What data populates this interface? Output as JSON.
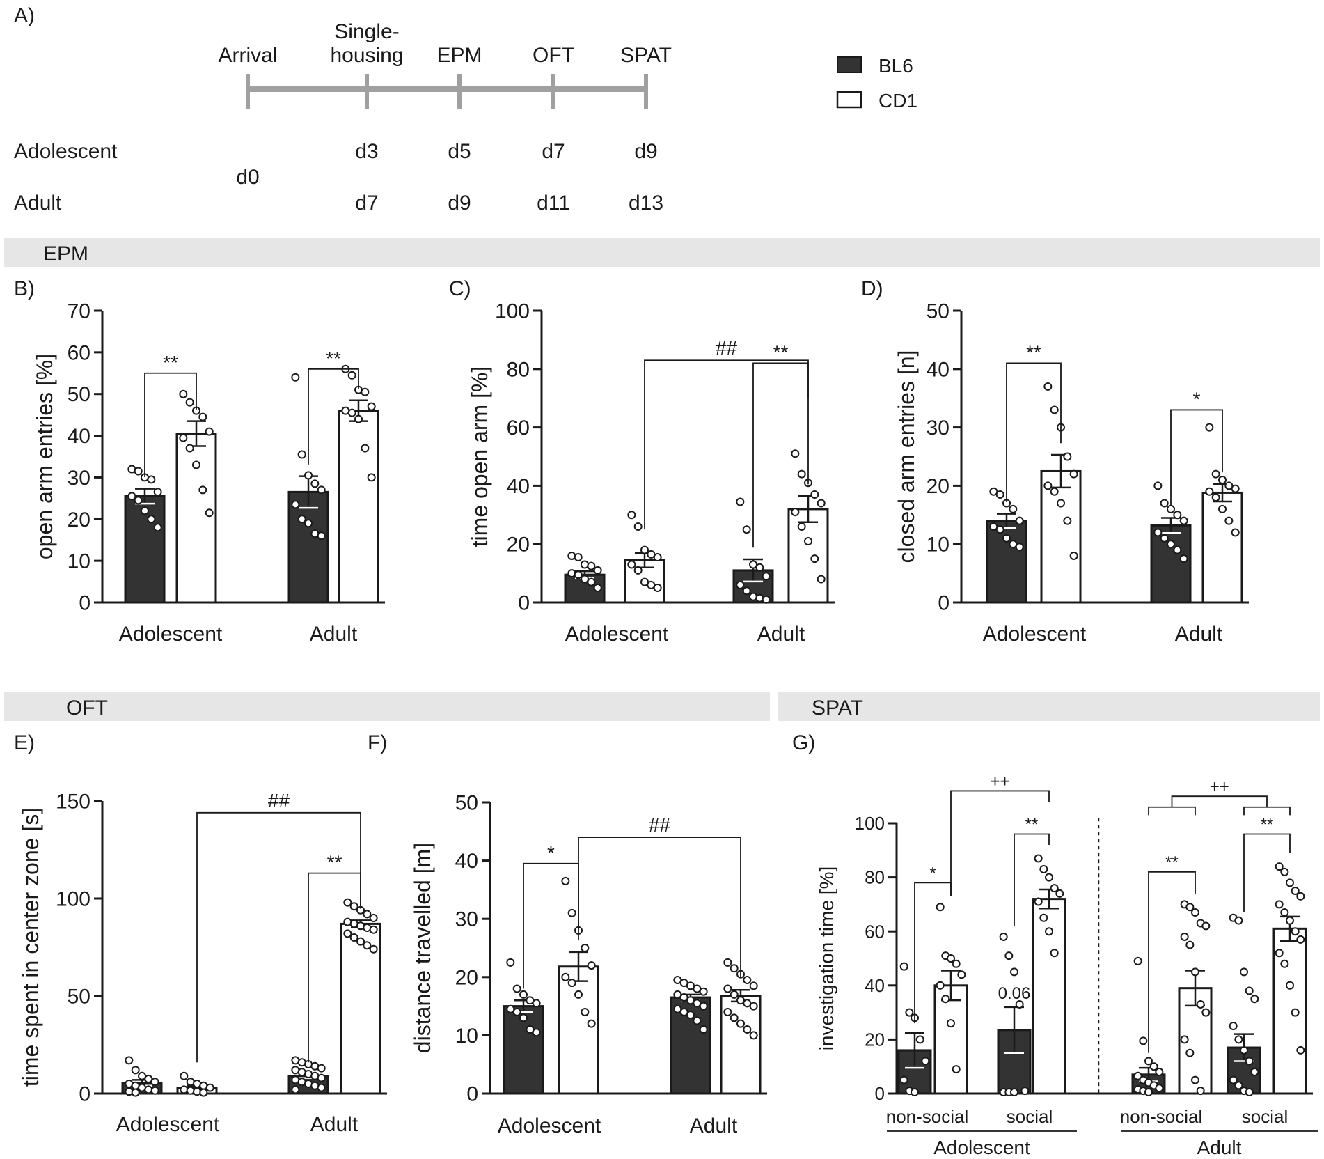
{
  "colors": {
    "bl6": "#333333",
    "cd1": "#ffffff",
    "axis": "#1a1a1a",
    "timeline": "#a0a0a0",
    "section_band": "#e6e6e6"
  },
  "legend": {
    "bl6": "BL6",
    "cd1": "CD1"
  },
  "panel_labels": {
    "a": "A)",
    "b": "B)",
    "c": "C)",
    "d": "D)",
    "e": "E)",
    "f": "F)",
    "g": "G)"
  },
  "sections": {
    "epm": "EPM",
    "oft": "OFT",
    "spat": "SPAT"
  },
  "timeline": {
    "events": [
      {
        "label": [
          "Arrival"
        ]
      },
      {
        "label": [
          "Single-",
          "housing"
        ]
      },
      {
        "label": [
          "EPM"
        ]
      },
      {
        "label": [
          "OFT"
        ]
      },
      {
        "label": [
          "SPAT"
        ]
      }
    ],
    "rows": [
      {
        "name": "Adolescent",
        "days": [
          "",
          "d3",
          "d5",
          "d7",
          "d9"
        ]
      },
      {
        "name": "Adult",
        "days": [
          "",
          "d7",
          "d9",
          "d11",
          "d13"
        ]
      }
    ],
    "shared_day": "d0"
  },
  "chart_data": [
    {
      "id": "B",
      "type": "bar",
      "ylabel": "open arm entries [%]",
      "ylim": [
        0,
        70
      ],
      "yticks": [
        0,
        10,
        20,
        30,
        40,
        50,
        60,
        70
      ],
      "categories": [
        "Adolescent",
        "Adult"
      ],
      "series": [
        {
          "name": "BL6",
          "values": [
            25.5,
            26.5
          ],
          "sem": [
            1.8,
            3.8
          ]
        },
        {
          "name": "CD1",
          "values": [
            40.5,
            46
          ],
          "sem": [
            3,
            2.5
          ]
        }
      ],
      "points": [
        [
          [
            32,
            31.5,
            30,
            29.5,
            26.5,
            25.5,
            24.5,
            22,
            20,
            18
          ],
          [
            50,
            48,
            46,
            44.5,
            41,
            39.5,
            37,
            33,
            27,
            21.5
          ]
        ],
        [
          [
            54,
            35.5,
            30.5,
            28.5,
            27,
            23.5,
            20,
            19,
            16.5,
            16
          ],
          [
            56,
            54.5,
            51,
            50.5,
            47,
            46,
            45.5,
            44,
            37,
            30
          ]
        ]
      ],
      "annotations": [
        {
          "text": "**",
          "between": "Adolescent BL6 vs CD1"
        },
        {
          "text": "**",
          "between": "Adult BL6 vs CD1"
        }
      ]
    },
    {
      "id": "C",
      "type": "bar",
      "ylabel": "time open arm [%]",
      "ylim": [
        0,
        100
      ],
      "yticks": [
        0,
        20,
        40,
        60,
        80,
        100
      ],
      "categories": [
        "Adolescent",
        "Adult"
      ],
      "series": [
        {
          "name": "BL6",
          "values": [
            9.5,
            11
          ],
          "sem": [
            1.2,
            3.8
          ]
        },
        {
          "name": "CD1",
          "values": [
            14.5,
            32
          ],
          "sem": [
            2.5,
            4.5
          ]
        }
      ],
      "points": [
        [
          [
            16,
            15.5,
            13,
            12.5,
            11,
            10,
            9.5,
            8,
            7,
            5
          ],
          [
            30,
            26,
            18,
            16.5,
            15.5,
            13,
            11,
            7,
            6,
            5
          ]
        ],
        [
          [
            34.5,
            25,
            13,
            12,
            9,
            6,
            4,
            2,
            1.5,
            1
          ],
          [
            51,
            44,
            41,
            37,
            34,
            31,
            26,
            21,
            15,
            8
          ]
        ]
      ],
      "annotations": [
        {
          "text": "**",
          "between": "Adult BL6 vs CD1"
        },
        {
          "text": "##",
          "between": "Adolescent CD1 vs Adult CD1"
        }
      ]
    },
    {
      "id": "D",
      "type": "bar",
      "ylabel": "closed arm entries [n]",
      "ylim": [
        0,
        50
      ],
      "yticks": [
        0,
        10,
        20,
        30,
        40,
        50
      ],
      "categories": [
        "Adolescent",
        "Adult"
      ],
      "series": [
        {
          "name": "BL6",
          "values": [
            14,
            13.2
          ],
          "sem": [
            1.2,
            1.3
          ]
        },
        {
          "name": "CD1",
          "values": [
            22.5,
            18.8
          ],
          "sem": [
            2.8,
            1.5
          ]
        }
      ],
      "points": [
        [
          [
            19,
            18.5,
            17,
            16,
            14,
            13,
            12.5,
            11,
            10,
            9.5
          ],
          [
            37,
            33,
            30,
            25,
            22,
            20,
            19,
            17,
            14,
            8
          ]
        ],
        [
          [
            20,
            17,
            16,
            15,
            14,
            12,
            11,
            10,
            9,
            7.5
          ],
          [
            30,
            22,
            21,
            20,
            19.5,
            19,
            18,
            16,
            14,
            12
          ]
        ]
      ],
      "annotations": [
        {
          "text": "**",
          "between": "Adolescent BL6 vs CD1"
        },
        {
          "text": "*",
          "between": "Adult BL6 vs CD1"
        }
      ]
    },
    {
      "id": "E",
      "type": "bar",
      "ylabel": "time spent in center zone [s]",
      "ylim": [
        0,
        150
      ],
      "yticks": [
        0,
        50,
        100,
        150
      ],
      "categories": [
        "Adolescent",
        "Adult"
      ],
      "series": [
        {
          "name": "BL6",
          "values": [
            5.5,
            9
          ],
          "sem": [
            1.5,
            1
          ]
        },
        {
          "name": "CD1",
          "values": [
            3,
            87
          ],
          "sem": [
            1,
            1.8
          ]
        }
      ],
      "points": [
        [
          [
            17,
            12,
            9,
            7.5,
            6,
            5,
            4,
            3,
            2,
            1.5,
            1,
            0.5
          ],
          [
            9,
            6,
            5,
            4,
            3,
            2,
            1.5,
            1,
            0.5
          ]
        ],
        [
          [
            17,
            16,
            15,
            14,
            13,
            12,
            11,
            10,
            9,
            8,
            7,
            6,
            5,
            4,
            3,
            2
          ],
          [
            98,
            96,
            94,
            92,
            90,
            88,
            87,
            86,
            85,
            84,
            82,
            80,
            78,
            76,
            74
          ]
        ]
      ],
      "annotations": [
        {
          "text": "**",
          "between": "Adult BL6 vs CD1"
        },
        {
          "text": "##",
          "between": "Adolescent CD1 vs Adult CD1"
        }
      ]
    },
    {
      "id": "F",
      "type": "bar",
      "ylabel": "distance travelled [m]",
      "ylim": [
        0,
        50
      ],
      "yticks": [
        0,
        10,
        20,
        30,
        40,
        50
      ],
      "categories": [
        "Adolescent",
        "Adult"
      ],
      "series": [
        {
          "name": "BL6",
          "values": [
            15,
            16.5
          ],
          "sem": [
            1,
            0.5
          ]
        },
        {
          "name": "CD1",
          "values": [
            21.8,
            16.8
          ],
          "sem": [
            2.5,
            1
          ]
        }
      ],
      "points": [
        [
          [
            22.5,
            18,
            17,
            16,
            15.5,
            14.5,
            14,
            13,
            11,
            10.5
          ],
          [
            36.5,
            31,
            28,
            25,
            22,
            20,
            19,
            17,
            14,
            12
          ]
        ],
        [
          [
            19.5,
            19,
            18.5,
            18,
            17.5,
            17,
            16.5,
            16,
            15.5,
            15,
            14.5,
            14,
            13.5,
            12.5,
            11
          ],
          [
            22.5,
            21.5,
            20.5,
            19.5,
            18.5,
            18,
            17,
            16,
            15.5,
            15,
            14,
            13,
            12,
            11,
            10
          ]
        ]
      ],
      "annotations": [
        {
          "text": "*",
          "between": "Adolescent BL6 vs CD1"
        },
        {
          "text": "##",
          "between": "Adolescent CD1 vs Adult CD1"
        }
      ]
    },
    {
      "id": "G",
      "type": "bar",
      "ylabel": "investigation time [%]",
      "ylim": [
        0,
        100
      ],
      "yticks": [
        0,
        20,
        40,
        60,
        80,
        100
      ],
      "categories": [
        "non-social",
        "social",
        "non-social",
        "social"
      ],
      "groups": [
        "Adolescent",
        "Adult"
      ],
      "series": [
        {
          "name": "BL6",
          "values": [
            16,
            23.5,
            7,
            17
          ],
          "sem": [
            6.5,
            8.5,
            2.5,
            5
          ]
        },
        {
          "name": "CD1",
          "values": [
            40,
            72,
            39,
            61
          ],
          "sem": [
            5.5,
            3.5,
            6.5,
            4.5
          ]
        }
      ],
      "points": [
        [
          [
            47,
            30,
            28,
            20,
            12,
            5,
            1,
            0.5
          ],
          [
            69,
            51,
            50,
            48,
            44,
            40,
            35,
            26,
            9
          ]
        ],
        [
          [
            58,
            51,
            45,
            33,
            1,
            0.5,
            0.5,
            0.5
          ],
          [
            87,
            83,
            80,
            76,
            74,
            71,
            65,
            60,
            52
          ]
        ],
        [
          [
            49,
            19.5,
            12,
            10,
            8,
            6.5,
            5,
            4,
            3,
            2,
            1.5,
            1,
            0.5
          ],
          [
            70,
            69,
            67,
            63,
            62,
            58,
            55,
            45,
            33,
            30,
            20,
            15,
            5,
            1
          ]
        ],
        [
          [
            65,
            64,
            45,
            38,
            35,
            25,
            20,
            16,
            12,
            8,
            5,
            3,
            1,
            0.5
          ],
          [
            84,
            82,
            78,
            75,
            73,
            70,
            67,
            64,
            60,
            57,
            52,
            48,
            40,
            30,
            16
          ]
        ]
      ],
      "annotations": [
        {
          "text": "*",
          "between": "Adolescent non-social BL6 vs CD1"
        },
        {
          "text": "**",
          "between": "Adolescent social BL6 vs CD1"
        },
        {
          "text": "++",
          "between": "Adolescent non-social CD1 vs social CD1"
        },
        {
          "text": "0.06",
          "between": "Adolescent social BL6"
        },
        {
          "text": "**",
          "between": "Adult non-social BL6 vs CD1"
        },
        {
          "text": "**",
          "between": "Adult social BL6 vs CD1"
        },
        {
          "text": "++",
          "between": "Adult non-social vs social"
        }
      ]
    }
  ]
}
